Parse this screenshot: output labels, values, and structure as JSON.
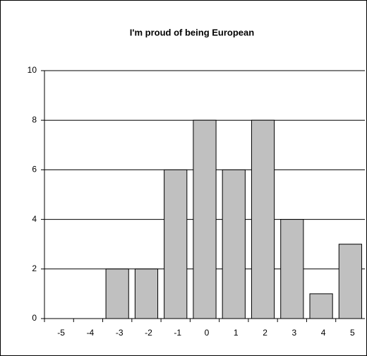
{
  "chart_data": {
    "type": "bar",
    "title": "I'm proud of being European",
    "categories": [
      "-5",
      "-4",
      "-3",
      "-2",
      "-1",
      "0",
      "1",
      "2",
      "3",
      "4",
      "5"
    ],
    "values": [
      0,
      0,
      2,
      2,
      6,
      8,
      6,
      8,
      4,
      1,
      3
    ],
    "color": "#c0c0c0",
    "ylim": [
      0,
      10
    ],
    "yticks": [
      0,
      2,
      4,
      6,
      8,
      10
    ],
    "grid": true
  }
}
